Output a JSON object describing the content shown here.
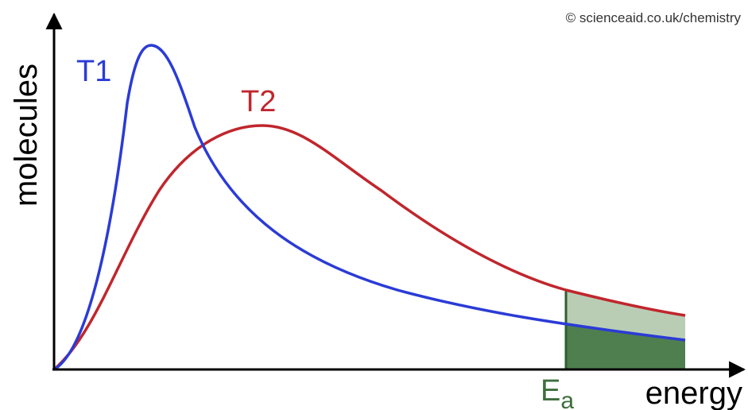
{
  "copyright": "© scienceaid.co.uk/chemistry",
  "axes": {
    "y_label": "molecules",
    "x_label": "energy"
  },
  "curves": [
    {
      "label": "T1"
    },
    {
      "label": "T2"
    }
  ],
  "activation_energy": {
    "symbol": "E",
    "subscript": "a"
  }
}
